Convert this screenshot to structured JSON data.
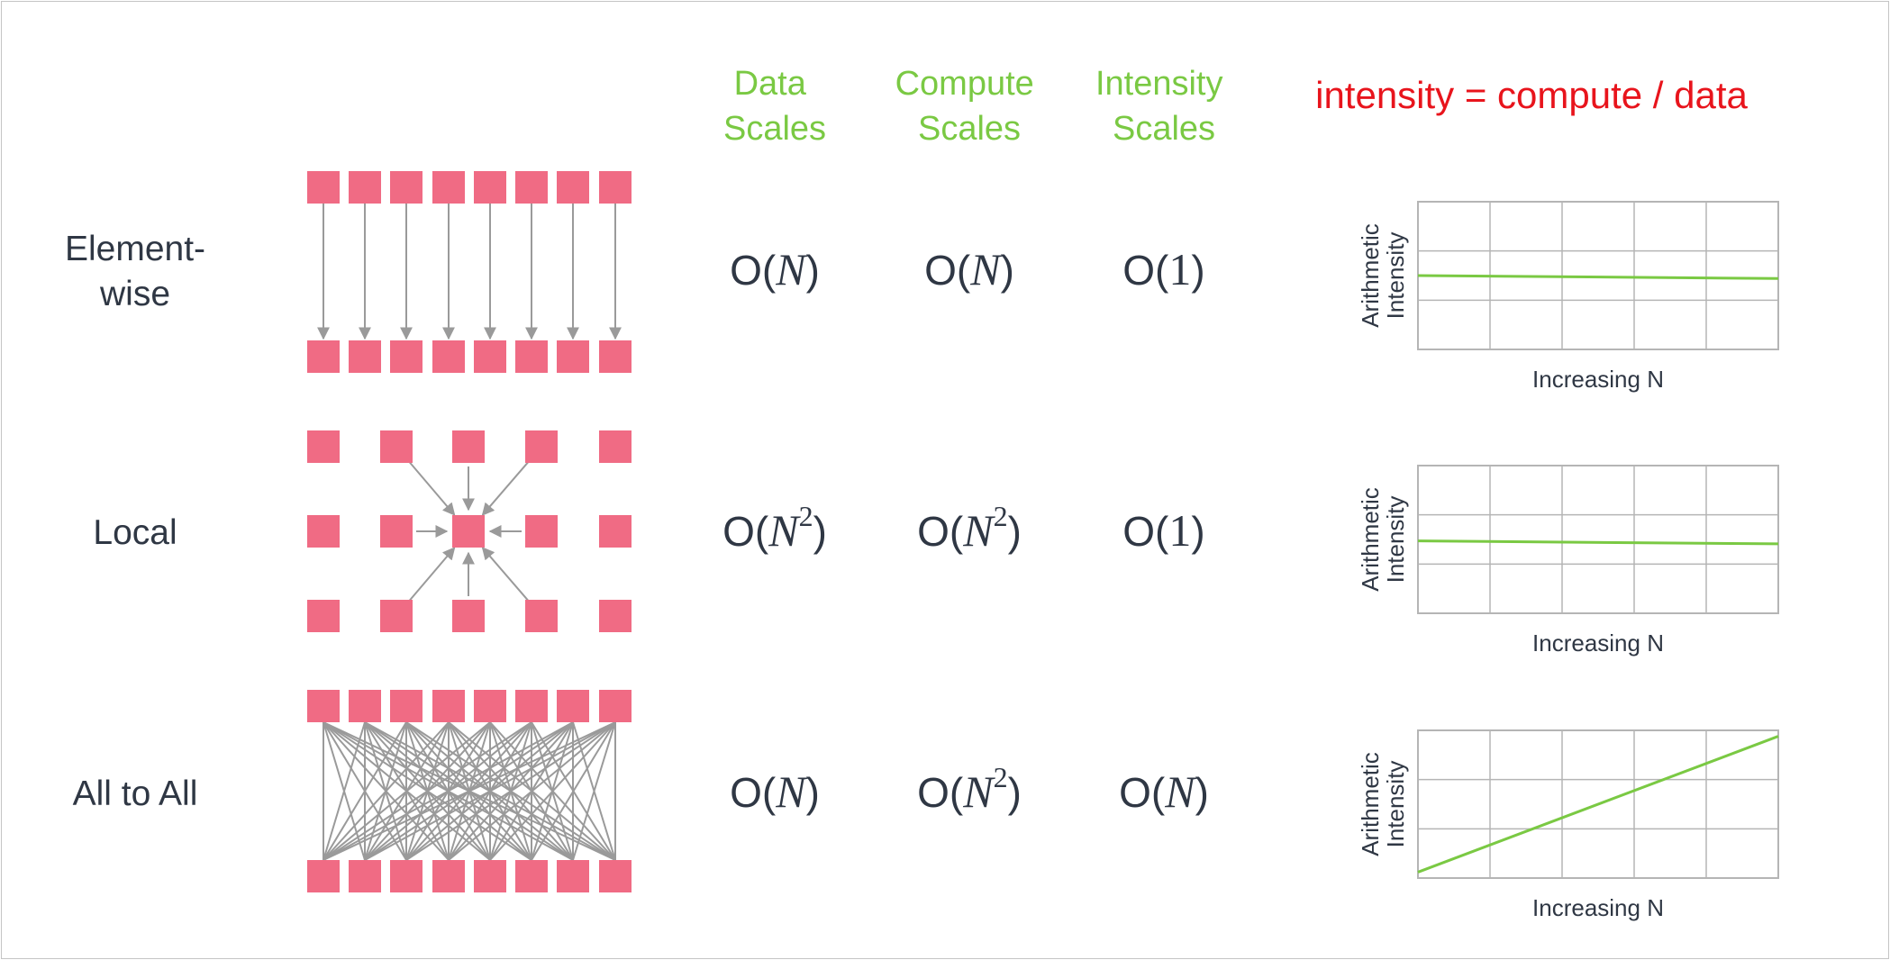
{
  "header": {
    "data_scales": [
      "Data",
      "Scales"
    ],
    "compute_scales": [
      "Compute",
      "Scales"
    ],
    "intensity_scales": [
      "Intensity",
      "Scales"
    ],
    "formula": "intensity = compute / data"
  },
  "colors": {
    "header_green": "#7ac943",
    "formula_red": "#e8141c",
    "node_pink": "#f06b84",
    "edge_gray": "#9a9a9a",
    "grid_gray": "#b5b5b5",
    "line_green": "#7ac943",
    "text_dark": "#2f3744"
  },
  "rows": [
    {
      "id": "element-wise",
      "label": [
        "Element-",
        "wise"
      ],
      "pattern": "element-wise",
      "data": {
        "prefix": "O(",
        "var": "N",
        "sup": "",
        "suffix": ")"
      },
      "compute": {
        "prefix": "O(",
        "var": "N",
        "sup": "",
        "suffix": ")"
      },
      "intensity": {
        "prefix": "O(",
        "var": "1",
        "sup": "",
        "suffix": ")"
      },
      "chart": {
        "ylabel": [
          "Arithmetic",
          "Intensity"
        ],
        "xlabel": "Increasing N",
        "trend": "flat",
        "values": [
          0.5,
          0.48
        ]
      }
    },
    {
      "id": "local",
      "label": [
        "Local"
      ],
      "pattern": "local",
      "data": {
        "prefix": "O(",
        "var": "N",
        "sup": "2",
        "suffix": ")"
      },
      "compute": {
        "prefix": "O(",
        "var": "N",
        "sup": "2",
        "suffix": ")"
      },
      "intensity": {
        "prefix": "O(",
        "var": "1",
        "sup": "",
        "suffix": ")"
      },
      "chart": {
        "ylabel": [
          "Arithmetic",
          "Intensity"
        ],
        "xlabel": "Increasing N",
        "trend": "flat",
        "values": [
          0.49,
          0.47
        ]
      }
    },
    {
      "id": "all-to-all",
      "label": [
        "All to All"
      ],
      "pattern": "all-to-all",
      "data": {
        "prefix": "O(",
        "var": "N",
        "sup": "",
        "suffix": ")"
      },
      "compute": {
        "prefix": "O(",
        "var": "N",
        "sup": "2",
        "suffix": ")"
      },
      "intensity": {
        "prefix": "O(",
        "var": "N",
        "sup": "",
        "suffix": ")"
      },
      "chart": {
        "ylabel": [
          "Arithmetic",
          "Intensity"
        ],
        "xlabel": "Increasing N",
        "trend": "increasing",
        "values": [
          0.04,
          0.96
        ]
      }
    }
  ]
}
